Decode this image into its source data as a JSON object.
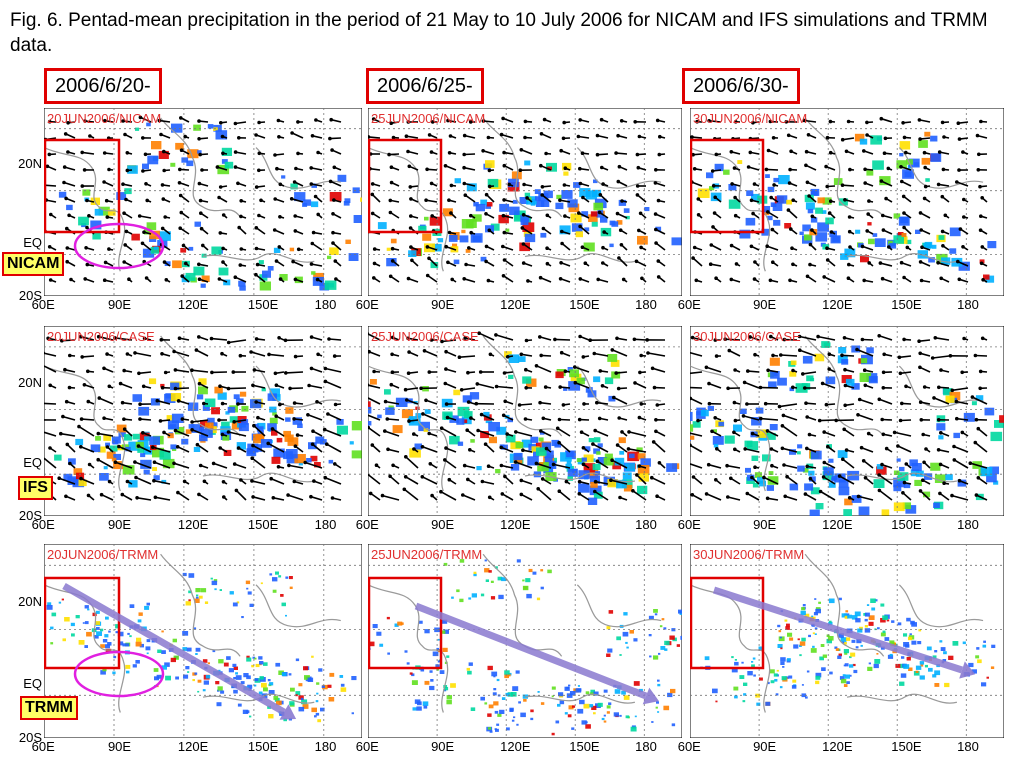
{
  "figure": {
    "caption": "Fig. 6. Pentad-mean precipitation in the period of 21 May to 10 July 2006 for NICAM and IFS simulations and TRMM data.",
    "column_dates": [
      "2006/6/20-",
      "2006/6/25-",
      "2006/6/30-"
    ],
    "row_labels": [
      "NICAM",
      "IFS",
      "TRMM"
    ],
    "panel_titles": [
      [
        "20JUN2006/NICAM",
        "25JUN2006/NICAM",
        "30JUN2006/NICAM"
      ],
      [
        "20JUN2006/CASE",
        "25JUN2006/CASE",
        "30JUN2006/CASE"
      ],
      [
        "20JUN2006/TRMM",
        "25JUN2006/TRMM",
        "30JUN2006/TRMM"
      ]
    ],
    "lat_ticks": [
      "20N",
      "EQ",
      "20S"
    ],
    "lon_ticks": [
      "60E",
      "90E",
      "120E",
      "150E",
      "180"
    ]
  },
  "colors": {
    "highlight_box": "#e00000",
    "circle": "#e020e0",
    "arrow": "#8a7ad0",
    "label_bg": "#ffff66"
  }
}
